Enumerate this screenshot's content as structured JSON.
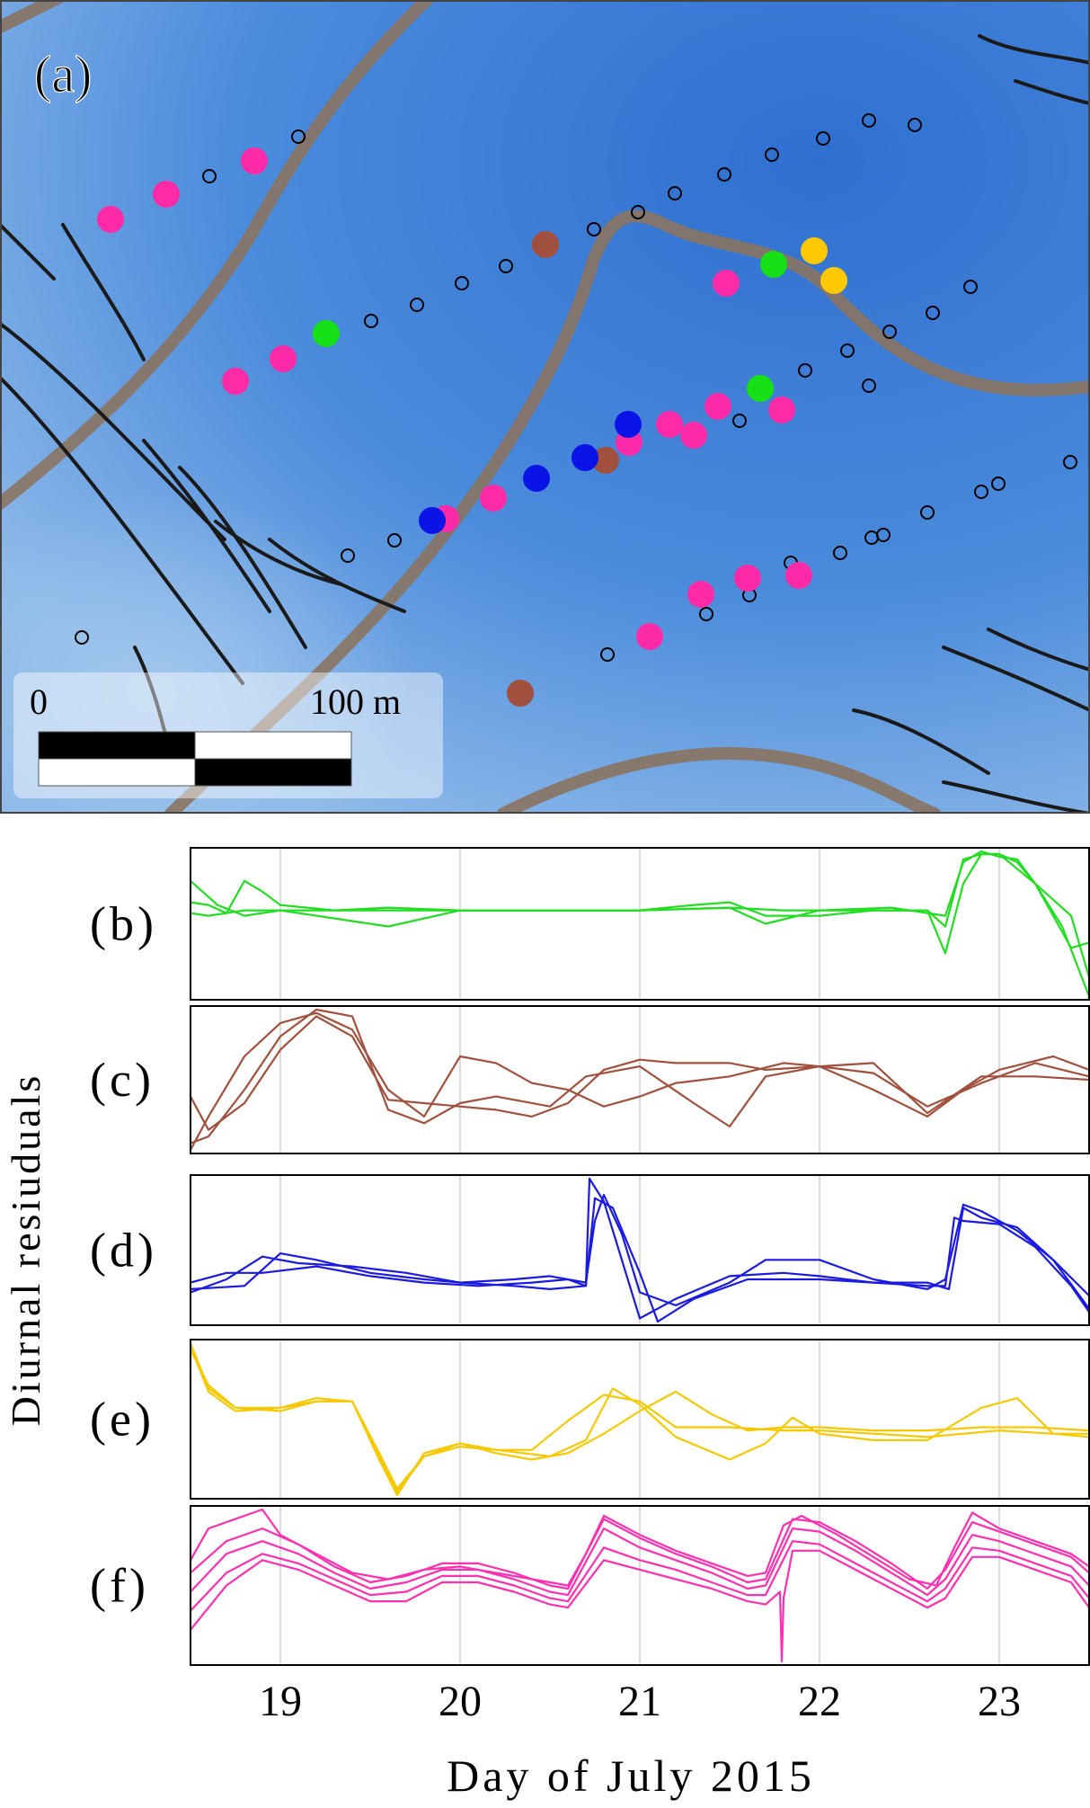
{
  "panel_a": {
    "label": "(a)",
    "scale_bar": {
      "start_label": "0",
      "end_label": "100 m"
    },
    "colors": {
      "background": "#3f7fd0",
      "channel": "#8a7462",
      "crevasse": "#1a1a1a",
      "b_green": "#16e016",
      "c_brown": "#a0503c",
      "d_blue": "#0a14e6",
      "e_yellow": "#ffc800",
      "f_pink": "#ff2aa8",
      "unused_station": "#000000"
    }
  },
  "chart_data": [
    {
      "type": "line",
      "panel": "(b)",
      "color": "#22dd22",
      "xlim": [
        18.5,
        23.5
      ],
      "series": [
        {
          "x": [
            18.5,
            18.6,
            18.7,
            18.8,
            18.9,
            19.0,
            19.3,
            19.6,
            20.0,
            20.5,
            21.0,
            21.5,
            21.8,
            22.0,
            22.4,
            22.7,
            22.8,
            22.9,
            23.0,
            23.1,
            23.2,
            23.35,
            23.5
          ],
          "y": [
            0.15,
            0.1,
            -0.05,
            0.55,
            0.35,
            0.1,
            0.0,
            0.0,
            0.0,
            0.0,
            0.0,
            0.05,
            0.0,
            0.0,
            0.05,
            -0.1,
            0.9,
            1.1,
            1.0,
            0.95,
            0.5,
            -0.3,
            -1.6
          ]
        },
        {
          "x": [
            18.5,
            18.6,
            18.8,
            19.0,
            19.3,
            19.6,
            20.0,
            20.5,
            21.0,
            21.3,
            21.5,
            21.7,
            22.0,
            22.3,
            22.6,
            22.7,
            22.8,
            22.9,
            23.0,
            23.1,
            23.2,
            23.4,
            23.5
          ],
          "y": [
            -0.05,
            -0.1,
            0.0,
            0.0,
            0.0,
            0.05,
            0.0,
            0.0,
            0.0,
            0.1,
            0.15,
            -0.1,
            -0.1,
            0.0,
            0.0,
            -0.8,
            0.5,
            1.05,
            1.05,
            0.9,
            0.5,
            -0.1,
            -1.25
          ]
        },
        {
          "x": [
            18.5,
            18.65,
            18.8,
            19.0,
            19.3,
            19.6,
            20.0,
            20.5,
            21.0,
            21.5,
            21.7,
            22.0,
            22.3,
            22.6,
            22.7,
            22.8,
            22.9,
            23.0,
            23.2,
            23.4,
            23.5
          ],
          "y": [
            0.55,
            0.1,
            -0.1,
            0.0,
            -0.15,
            -0.3,
            0.0,
            0.0,
            0.0,
            0.05,
            -0.25,
            0.0,
            0.0,
            0.0,
            -0.3,
            0.95,
            1.05,
            1.05,
            0.5,
            -0.7,
            -0.6
          ]
        }
      ]
    },
    {
      "type": "line",
      "panel": "(c)",
      "color": "#a0503c",
      "xlim": [
        18.5,
        23.5
      ],
      "series": [
        {
          "x": [
            18.5,
            18.6,
            18.8,
            19.0,
            19.2,
            19.4,
            19.6,
            19.8,
            20.0,
            20.2,
            20.4,
            20.6,
            20.8,
            21.0,
            21.2,
            21.5,
            21.7,
            22.0,
            22.3,
            22.6,
            22.9,
            23.2,
            23.5
          ],
          "y": [
            -0.2,
            -0.7,
            -0.3,
            0.5,
            1.0,
            0.7,
            -0.25,
            -0.3,
            -0.35,
            -0.4,
            -0.5,
            -0.3,
            0.2,
            0.35,
            0.3,
            0.3,
            0.2,
            0.25,
            0.15,
            -0.35,
            0.0,
            0.3,
            0.1
          ]
        },
        {
          "x": [
            18.5,
            18.6,
            18.8,
            19.0,
            19.2,
            19.4,
            19.6,
            19.8,
            20.0,
            20.2,
            20.5,
            20.7,
            21.0,
            21.3,
            21.5,
            21.7,
            22.0,
            22.3,
            22.6,
            22.9,
            23.2,
            23.5
          ],
          "y": [
            -0.9,
            -0.8,
            -0.1,
            0.7,
            1.1,
            1.0,
            -0.4,
            -0.6,
            -0.3,
            -0.2,
            -0.35,
            0.1,
            0.25,
            -0.3,
            -0.65,
            0.1,
            0.25,
            0.3,
            -0.45,
            0.1,
            0.1,
            0.05
          ]
        },
        {
          "x": [
            18.5,
            18.6,
            18.8,
            19.0,
            19.2,
            19.4,
            19.6,
            19.8,
            20.0,
            20.2,
            20.4,
            20.6,
            20.8,
            21.0,
            21.2,
            21.5,
            21.8,
            22.0,
            22.3,
            22.6,
            22.8,
            23.0,
            23.3,
            23.5
          ],
          "y": [
            -1.0,
            -0.5,
            0.4,
            0.9,
            1.05,
            0.8,
            -0.1,
            -0.5,
            0.4,
            0.3,
            0.0,
            -0.1,
            -0.35,
            -0.2,
            0.0,
            0.1,
            0.3,
            0.25,
            -0.1,
            -0.5,
            -0.1,
            0.2,
            0.4,
            0.2
          ]
        }
      ]
    },
    {
      "type": "line",
      "panel": "(d)",
      "color": "#1a1ae0",
      "xlim": [
        18.5,
        23.5
      ],
      "series": [
        {
          "x": [
            18.5,
            18.7,
            18.9,
            19.1,
            19.4,
            19.7,
            20.0,
            20.3,
            20.5,
            20.7,
            20.72,
            20.8,
            20.9,
            21.0,
            21.2,
            21.5,
            21.8,
            22.0,
            22.3,
            22.6,
            22.7,
            22.75,
            22.8,
            23.0,
            23.2,
            23.4,
            23.5
          ],
          "y": [
            -0.5,
            -0.3,
            0.05,
            -0.05,
            -0.1,
            -0.2,
            -0.35,
            -0.4,
            -0.45,
            -0.4,
            1.25,
            0.9,
            0.0,
            -0.9,
            -0.6,
            -0.25,
            -0.2,
            -0.25,
            -0.35,
            -0.4,
            -0.4,
            0.65,
            0.6,
            0.55,
            0.2,
            -0.4,
            -0.8
          ]
        },
        {
          "x": [
            18.5,
            18.7,
            18.9,
            19.2,
            19.5,
            19.8,
            20.1,
            20.4,
            20.6,
            20.7,
            20.75,
            20.85,
            21.0,
            21.1,
            21.3,
            21.6,
            22.0,
            22.3,
            22.6,
            22.72,
            22.8,
            22.9,
            23.1,
            23.3,
            23.5
          ],
          "y": [
            -0.35,
            -0.2,
            -0.2,
            -0.1,
            -0.25,
            -0.35,
            -0.4,
            -0.35,
            -0.3,
            -0.4,
            0.95,
            0.8,
            -0.2,
            -0.95,
            -0.6,
            -0.3,
            -0.3,
            -0.35,
            -0.35,
            -0.45,
            0.8,
            0.65,
            0.5,
            0.0,
            -0.55
          ]
        },
        {
          "x": [
            18.5,
            18.8,
            19.0,
            19.2,
            19.5,
            19.8,
            20.0,
            20.3,
            20.5,
            20.7,
            20.75,
            20.8,
            20.9,
            21.0,
            21.2,
            21.5,
            21.7,
            22.0,
            22.3,
            22.6,
            22.7,
            22.8,
            22.9,
            23.1,
            23.3,
            23.5
          ],
          "y": [
            -0.45,
            -0.4,
            0.1,
            0.0,
            -0.2,
            -0.3,
            -0.35,
            -0.3,
            -0.25,
            -0.35,
            0.6,
            1.0,
            0.4,
            -0.5,
            -0.7,
            -0.35,
            0.0,
            0.0,
            -0.3,
            -0.45,
            -0.3,
            0.85,
            0.75,
            0.45,
            0.0,
            -0.75
          ]
        }
      ]
    },
    {
      "type": "line",
      "panel": "(e)",
      "color": "#f5c800",
      "xlim": [
        18.5,
        23.5
      ],
      "series": [
        {
          "x": [
            18.5,
            18.6,
            18.75,
            19.0,
            19.2,
            19.4,
            19.55,
            19.65,
            19.8,
            20.0,
            20.2,
            20.4,
            20.6,
            20.8,
            21.0,
            21.2,
            21.5,
            21.8,
            22.0,
            22.3,
            22.6,
            23.0,
            23.3,
            23.5
          ],
          "y": [
            1.1,
            0.55,
            0.2,
            0.15,
            0.3,
            0.3,
            -0.5,
            -1.05,
            -0.55,
            -0.4,
            -0.45,
            -0.45,
            0.0,
            0.4,
            0.3,
            -0.1,
            -0.1,
            -0.15,
            -0.15,
            -0.2,
            -0.25,
            -0.15,
            -0.2,
            -0.2
          ]
        },
        {
          "x": [
            18.5,
            18.6,
            18.75,
            19.0,
            19.2,
            19.4,
            19.55,
            19.65,
            19.8,
            20.0,
            20.2,
            20.5,
            20.7,
            20.85,
            21.0,
            21.2,
            21.5,
            21.7,
            21.85,
            22.0,
            22.3,
            22.6,
            22.9,
            23.1,
            23.3,
            23.5
          ],
          "y": [
            1.15,
            0.45,
            0.15,
            0.2,
            0.3,
            0.3,
            -0.6,
            -1.15,
            -0.5,
            -0.35,
            -0.45,
            -0.55,
            -0.3,
            0.5,
            0.25,
            -0.25,
            -0.6,
            -0.35,
            0.05,
            -0.2,
            -0.3,
            -0.3,
            0.2,
            0.35,
            -0.2,
            -0.25
          ]
        },
        {
          "x": [
            18.5,
            18.6,
            18.75,
            19.0,
            19.2,
            19.4,
            19.55,
            19.65,
            19.8,
            20.0,
            20.2,
            20.4,
            20.6,
            20.8,
            21.0,
            21.2,
            21.4,
            21.6,
            21.8,
            22.0,
            22.3,
            22.6,
            22.9,
            23.2,
            23.5
          ],
          "y": [
            1.2,
            0.5,
            0.2,
            0.2,
            0.35,
            0.3,
            -0.55,
            -1.1,
            -0.55,
            -0.35,
            -0.5,
            -0.6,
            -0.5,
            -0.2,
            0.15,
            0.45,
            0.1,
            -0.15,
            -0.1,
            -0.1,
            -0.15,
            -0.15,
            -0.1,
            -0.1,
            -0.15
          ]
        }
      ]
    },
    {
      "type": "line",
      "panel": "(f)",
      "color": "#ff30b0",
      "xlim": [
        18.5,
        23.5
      ],
      "series": [
        {
          "x": [
            18.5,
            18.7,
            18.9,
            19.1,
            19.3,
            19.5,
            19.7,
            19.9,
            20.1,
            20.3,
            20.5,
            20.6,
            20.8,
            21.0,
            21.2,
            21.4,
            21.6,
            21.7,
            21.85,
            22.0,
            22.2,
            22.4,
            22.6,
            22.7,
            22.85,
            23.0,
            23.2,
            23.4,
            23.5
          ],
          "y": [
            -0.3,
            0.3,
            0.5,
            0.3,
            0.0,
            -0.25,
            -0.15,
            0.05,
            0.05,
            -0.1,
            -0.3,
            -0.35,
            0.7,
            0.4,
            0.2,
            0.0,
            -0.25,
            -0.2,
            0.7,
            0.65,
            0.35,
            0.0,
            -0.35,
            -0.1,
            0.6,
            0.5,
            0.3,
            0.1,
            -0.2
          ]
        },
        {
          "x": [
            18.5,
            18.7,
            18.9,
            19.1,
            19.3,
            19.5,
            19.7,
            19.9,
            20.1,
            20.3,
            20.5,
            20.6,
            20.8,
            21.0,
            21.2,
            21.4,
            21.6,
            21.7,
            21.85,
            22.0,
            22.2,
            22.4,
            22.6,
            22.7,
            22.85,
            23.0,
            23.2,
            23.4,
            23.5
          ],
          "y": [
            -0.6,
            0.0,
            0.3,
            0.15,
            -0.1,
            -0.35,
            -0.3,
            -0.05,
            -0.05,
            -0.2,
            -0.4,
            -0.45,
            0.4,
            0.2,
            0.05,
            -0.15,
            -0.35,
            -0.35,
            0.5,
            0.45,
            0.15,
            -0.15,
            -0.45,
            -0.25,
            0.4,
            0.35,
            0.15,
            -0.05,
            -0.4
          ]
        },
        {
          "x": [
            18.5,
            18.7,
            18.9,
            19.1,
            19.3,
            19.5,
            19.7,
            19.9,
            20.1,
            20.3,
            20.5,
            20.6,
            20.8,
            21.0,
            21.2,
            21.4,
            21.6,
            21.7,
            21.85,
            22.0,
            22.2,
            22.4,
            22.6,
            22.7,
            22.85,
            23.0,
            23.2,
            23.4,
            23.5
          ],
          "y": [
            0.0,
            0.5,
            0.7,
            0.45,
            0.1,
            -0.15,
            -0.05,
            0.15,
            0.15,
            0.0,
            -0.2,
            -0.25,
            0.85,
            0.55,
            0.3,
            0.1,
            -0.15,
            -0.1,
            0.85,
            0.8,
            0.5,
            0.15,
            -0.25,
            0.05,
            0.8,
            0.65,
            0.45,
            0.25,
            0.0
          ]
        },
        {
          "x": [
            18.5,
            18.7,
            18.9,
            19.1,
            19.3,
            19.5,
            19.7,
            19.9,
            20.1,
            20.3,
            20.5,
            20.6,
            20.8,
            21.0,
            21.2,
            21.4,
            21.6,
            21.7,
            21.78,
            21.79,
            21.8,
            21.85,
            22.0,
            22.2,
            22.4,
            22.6,
            22.7,
            22.85,
            23.0,
            23.2,
            23.4,
            23.5
          ],
          "y": [
            -0.9,
            -0.2,
            0.2,
            0.05,
            -0.2,
            -0.45,
            -0.45,
            -0.15,
            -0.15,
            -0.3,
            -0.5,
            -0.55,
            0.2,
            0.05,
            -0.1,
            -0.25,
            -0.45,
            -0.5,
            -0.3,
            -1.4,
            -0.4,
            0.35,
            0.35,
            0.05,
            -0.25,
            -0.55,
            -0.4,
            0.25,
            0.25,
            0.05,
            -0.15,
            -0.55
          ]
        },
        {
          "x": [
            18.5,
            18.6,
            18.8,
            18.9,
            19.0,
            19.2,
            19.4,
            19.6,
            19.8,
            20.0,
            20.2,
            20.4,
            20.6,
            20.7,
            20.8,
            21.0,
            21.2,
            21.4,
            21.6,
            21.7,
            21.8,
            21.9,
            22.1,
            22.3,
            22.5,
            22.65,
            22.75,
            22.85,
            23.0,
            23.2,
            23.4,
            23.5
          ],
          "y": [
            0.2,
            0.7,
            0.9,
            1.0,
            0.6,
            0.3,
            0.0,
            -0.1,
            0.05,
            0.1,
            0.0,
            -0.1,
            -0.2,
            0.3,
            0.9,
            0.6,
            0.35,
            0.15,
            -0.05,
            0.0,
            0.75,
            0.9,
            0.6,
            0.25,
            -0.1,
            -0.2,
            0.4,
            0.95,
            0.7,
            0.5,
            0.3,
            0.1
          ]
        }
      ]
    }
  ],
  "bottom_axis": {
    "ticks": [
      "19",
      "20",
      "21",
      "22",
      "23"
    ],
    "xlabel": "Day of July 2015"
  },
  "shared_ylabel": "Diurnal resiuduals",
  "panel_labels": [
    "(b)",
    "(c)",
    "(d)",
    "(e)",
    "(f)"
  ]
}
